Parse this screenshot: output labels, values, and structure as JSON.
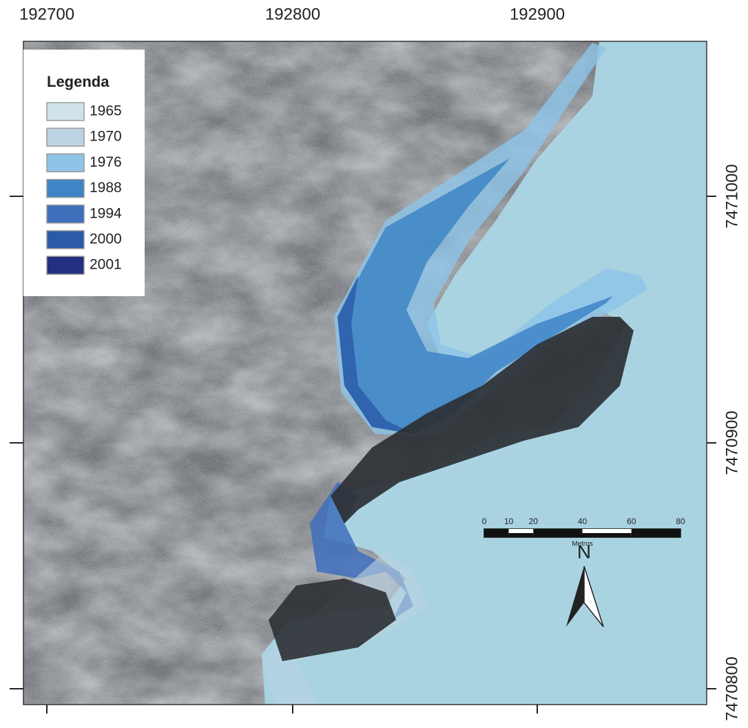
{
  "map": {
    "x_ticks": [
      "192700",
      "192800",
      "192900"
    ],
    "y_ticks": [
      "7471000",
      "7470900",
      "7470800"
    ],
    "legend": {
      "title": "Legenda",
      "items": [
        {
          "label": "1965",
          "color": "#cfe3e8"
        },
        {
          "label": "1970",
          "color": "#bcd3e3"
        },
        {
          "label": "1976",
          "color": "#8dc4e8"
        },
        {
          "label": "1988",
          "color": "#3d85c6"
        },
        {
          "label": "1994",
          "color": "#3e6fbb"
        },
        {
          "label": "2000",
          "color": "#2a5aa8"
        },
        {
          "label": "2001",
          "color": "#22307f"
        }
      ]
    },
    "north": "N",
    "scale": {
      "ticks": [
        0,
        10,
        20,
        40,
        60,
        80
      ],
      "unit": "Metros"
    }
  }
}
